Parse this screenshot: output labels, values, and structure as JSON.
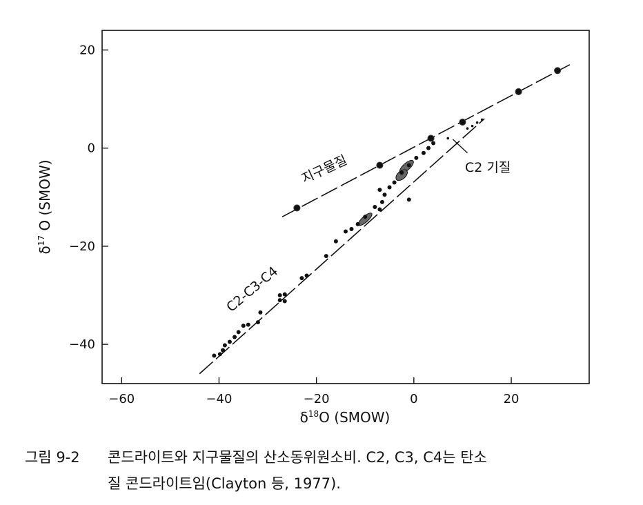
{
  "chart_data": {
    "type": "scatter",
    "xlabel_delta": "δ",
    "xlabel_sup": "18",
    "xlabel_rest": "O (SMOW)",
    "ylabel_delta": "δ",
    "ylabel_sup": "17",
    "ylabel_rest": " O (SMOW)",
    "xlim": [
      -64,
      36
    ],
    "ylim": [
      -48,
      24
    ],
    "xticks": [
      -60,
      -40,
      -20,
      0,
      20
    ],
    "yticks": [
      20,
      0,
      -20,
      -40
    ],
    "xtick_labels": [
      "−60",
      "−40",
      "−20",
      "0",
      "20"
    ],
    "ytick_labels": [
      "20",
      "0",
      "−20",
      "−40"
    ],
    "annotations": {
      "terrestrial": "지구물질",
      "c2_matrix": "C2 기질",
      "c2c3c4": "C2-C3-C4"
    },
    "series": [
      {
        "name": "지구물질",
        "marker": "large-circle",
        "line": {
          "x": [
            -27,
            32
          ],
          "y": [
            -14,
            17
          ]
        },
        "points": [
          {
            "x": -24,
            "y": -12.2
          },
          {
            "x": -7,
            "y": -3.5
          },
          {
            "x": 3.5,
            "y": 2
          },
          {
            "x": 10,
            "y": 5.3
          },
          {
            "x": 21.5,
            "y": 11.5
          },
          {
            "x": 29.5,
            "y": 15.8
          }
        ]
      },
      {
        "name": "C2-C3-C4",
        "marker": "small-dot",
        "line": {
          "x": [
            -44,
            14.5
          ],
          "y": [
            -46,
            6
          ]
        },
        "points": [
          {
            "x": -41,
            "y": -42.3
          },
          {
            "x": -39.8,
            "y": -42
          },
          {
            "x": -39.2,
            "y": -41.2
          },
          {
            "x": -38.8,
            "y": -40.2
          },
          {
            "x": -37.8,
            "y": -39.5
          },
          {
            "x": -36.8,
            "y": -38.5
          },
          {
            "x": -36,
            "y": -37.5
          },
          {
            "x": -35,
            "y": -36.2
          },
          {
            "x": -34,
            "y": -36
          },
          {
            "x": -32,
            "y": -35.5
          },
          {
            "x": -31.5,
            "y": -33.5
          },
          {
            "x": -27.5,
            "y": -31
          },
          {
            "x": -27.5,
            "y": -30
          },
          {
            "x": -26.5,
            "y": -29.8
          },
          {
            "x": -26.5,
            "y": -31.2
          },
          {
            "x": -23,
            "y": -26.5
          },
          {
            "x": -22,
            "y": -26
          },
          {
            "x": -18,
            "y": -22
          },
          {
            "x": -16,
            "y": -19
          },
          {
            "x": -14,
            "y": -17
          },
          {
            "x": -12.8,
            "y": -16.5
          },
          {
            "x": -11.5,
            "y": -15.5
          },
          {
            "x": -10,
            "y": -14
          },
          {
            "x": -8,
            "y": -12
          },
          {
            "x": -6.5,
            "y": -11
          },
          {
            "x": -7,
            "y": -8.5
          },
          {
            "x": -6,
            "y": -9.5
          },
          {
            "x": -5,
            "y": -8
          },
          {
            "x": -4,
            "y": -7
          },
          {
            "x": -2.5,
            "y": -5
          },
          {
            "x": -1,
            "y": -3.5
          },
          {
            "x": 0.5,
            "y": -2
          },
          {
            "x": 2,
            "y": -1
          },
          {
            "x": 3,
            "y": 0
          },
          {
            "x": 4,
            "y": 1
          },
          {
            "x": -7,
            "y": -12.5
          },
          {
            "x": -1,
            "y": -10.5
          }
        ]
      },
      {
        "name": "C2 기질",
        "marker": "tiny-dot",
        "points": [
          {
            "x": 7,
            "y": 2
          },
          {
            "x": 11,
            "y": 4
          },
          {
            "x": 12,
            "y": 4.5
          },
          {
            "x": 13,
            "y": 5.2
          },
          {
            "x": 14,
            "y": 5.8
          }
        ]
      }
    ],
    "regions": [
      {
        "name": "chondrule-field-1",
        "center": {
          "x": -1.5,
          "y": -3.8
        },
        "rx": 1.8,
        "ry": 0.7
      },
      {
        "name": "chondrule-field-2",
        "center": {
          "x": -2.5,
          "y": -5.5
        },
        "rx": 1.4,
        "ry": 0.8
      },
      {
        "name": "chondrule-field-3",
        "center": {
          "x": -10,
          "y": -14.5
        },
        "rx": 1.8,
        "ry": 0.6
      }
    ]
  },
  "caption": {
    "figure_number": "그림 9-2",
    "line1": "콘드라이트와 지구물질의 산소동위원소비. C2, C3, C4는 탄소",
    "line2": "질 콘드라이트임(Clayton 등, 1977)."
  }
}
